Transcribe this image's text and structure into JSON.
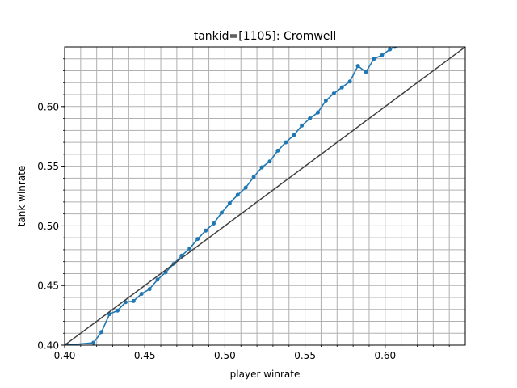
{
  "chart_data": {
    "type": "line",
    "title": "tankid=[1105]: Cromwell",
    "xlabel": "player winrate",
    "ylabel": "tank winrate",
    "xlim": [
      0.4,
      0.65
    ],
    "ylim": [
      0.4,
      0.65
    ],
    "x_ticks": [
      0.4,
      0.45,
      0.5,
      0.55,
      0.6
    ],
    "x_tick_labels": [
      "0.40",
      "0.45",
      "0.50",
      "0.55",
      "0.60"
    ],
    "y_ticks": [
      0.4,
      0.45,
      0.5,
      0.55,
      0.6
    ],
    "y_tick_labels": [
      "0.40",
      "0.45",
      "0.50",
      "0.55",
      "0.60"
    ],
    "grid": true,
    "grid_step": 0.01,
    "series": [
      {
        "color": "#1f77b4",
        "marker": "circle",
        "x": [
          0.401,
          0.418,
          0.423,
          0.428,
          0.433,
          0.438,
          0.443,
          0.448,
          0.453,
          0.458,
          0.463,
          0.468,
          0.473,
          0.478,
          0.483,
          0.488,
          0.493,
          0.498,
          0.503,
          0.508,
          0.513,
          0.518,
          0.523,
          0.528,
          0.533,
          0.538,
          0.543,
          0.548,
          0.553,
          0.558,
          0.563,
          0.568,
          0.573,
          0.578,
          0.583,
          0.588,
          0.593,
          0.598,
          0.603,
          0.606
        ],
        "y": [
          0.4,
          0.402,
          0.411,
          0.426,
          0.429,
          0.436,
          0.437,
          0.443,
          0.447,
          0.455,
          0.461,
          0.468,
          0.475,
          0.481,
          0.489,
          0.496,
          0.502,
          0.511,
          0.519,
          0.526,
          0.532,
          0.541,
          0.549,
          0.554,
          0.563,
          0.57,
          0.576,
          0.584,
          0.59,
          0.595,
          0.605,
          0.611,
          0.616,
          0.621,
          0.634,
          0.629,
          0.64,
          0.643,
          0.648,
          0.65
        ]
      },
      {
        "color": "#404040",
        "marker": "none",
        "x": [
          0.4,
          0.65
        ],
        "y": [
          0.4,
          0.65
        ]
      }
    ]
  }
}
